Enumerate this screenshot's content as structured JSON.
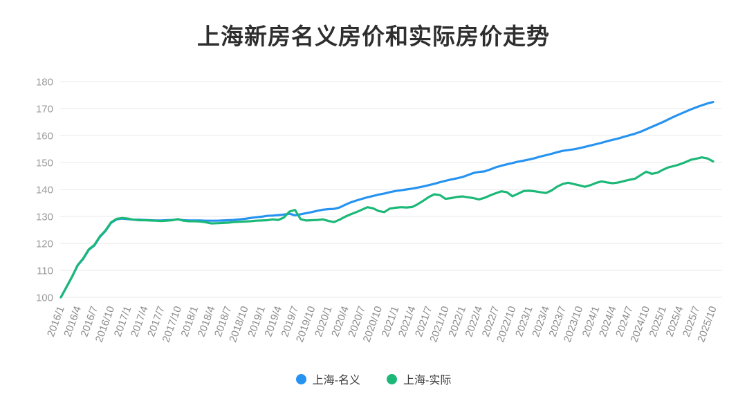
{
  "title": "上海新房名义房价和实际房价走势",
  "chart_data": {
    "type": "line",
    "title": "上海新房名义房价和实际房价走势",
    "grid": "horizontal-only",
    "legend_position": "bottom",
    "ylim": [
      100,
      180
    ],
    "y_ticks": [
      100,
      110,
      120,
      130,
      140,
      150,
      160,
      170,
      180
    ],
    "tick_step": 3,
    "x_tick_labels": [
      "2016/1",
      "2016/4",
      "2016/7",
      "2016/10",
      "2017/1",
      "2017/4",
      "2017/7",
      "2017/10",
      "2018/1",
      "2018/4",
      "2018/7",
      "2018/10",
      "2019/1",
      "2019/4",
      "2019/7",
      "2019/10",
      "2020/1",
      "2020/4",
      "2020/7",
      "2020/10",
      "2021/1",
      "2021/4",
      "2021/7",
      "2021/10",
      "2022/1",
      "2022/4",
      "2022/7",
      "2022/10",
      "2023/1",
      "2023/4",
      "2023/7",
      "2023/10",
      "2024/1",
      "2024/4",
      "2024/7",
      "2024/10",
      "2025/1",
      "2025/4",
      "2025/7",
      "2025/10"
    ],
    "x_start": "2016/1",
    "x_end": "2025/10",
    "x_frequency": "monthly",
    "series": [
      {
        "name": "上海-名义",
        "color": "#2693f1",
        "values": [
          100.0,
          103.8,
          107.6,
          111.8,
          114.2,
          117.6,
          119.2,
          122.4,
          124.6,
          127.6,
          128.9,
          129.2,
          129.0,
          128.8,
          128.8,
          128.7,
          128.6,
          128.5,
          128.5,
          128.6,
          128.7,
          128.9,
          128.6,
          128.5,
          128.5,
          128.5,
          128.4,
          128.4,
          128.4,
          128.5,
          128.6,
          128.7,
          128.9,
          129.1,
          129.4,
          129.7,
          129.9,
          130.2,
          130.3,
          130.5,
          130.7,
          131.0,
          130.4,
          130.8,
          131.2,
          131.6,
          132.1,
          132.5,
          132.7,
          132.8,
          133.3,
          134.3,
          135.2,
          135.9,
          136.5,
          137.1,
          137.6,
          138.1,
          138.5,
          139.0,
          139.4,
          139.7,
          140.0,
          140.3,
          140.7,
          141.1,
          141.6,
          142.1,
          142.7,
          143.2,
          143.7,
          144.1,
          144.6,
          145.3,
          146.1,
          146.5,
          146.7,
          147.4,
          148.2,
          148.8,
          149.3,
          149.8,
          150.3,
          150.7,
          151.1,
          151.6,
          152.2,
          152.7,
          153.2,
          153.8,
          154.3,
          154.6,
          154.9,
          155.3,
          155.8,
          156.3,
          156.8,
          157.3,
          157.9,
          158.4,
          158.9,
          159.5,
          160.1,
          160.7,
          161.4,
          162.3,
          163.2,
          164.1,
          165.0,
          166.0,
          167.0,
          167.9,
          168.8,
          169.7,
          170.5,
          171.2,
          171.9,
          172.4
        ]
      },
      {
        "name": "上海-实际",
        "color": "#1cb877",
        "values": [
          100.0,
          103.8,
          107.6,
          111.9,
          114.4,
          117.8,
          119.4,
          122.6,
          124.8,
          127.8,
          129.1,
          129.4,
          129.2,
          128.8,
          128.6,
          128.6,
          128.5,
          128.4,
          128.3,
          128.4,
          128.6,
          129.0,
          128.4,
          128.2,
          128.2,
          128.1,
          127.8,
          127.4,
          127.5,
          127.6,
          127.7,
          127.9,
          128.0,
          128.1,
          128.2,
          128.4,
          128.5,
          128.6,
          128.9,
          128.7,
          129.6,
          131.8,
          132.4,
          129.0,
          128.5,
          128.6,
          128.7,
          128.9,
          128.3,
          127.9,
          128.8,
          129.9,
          130.8,
          131.6,
          132.5,
          133.4,
          133.0,
          132.0,
          131.6,
          132.9,
          133.2,
          133.4,
          133.3,
          133.5,
          134.5,
          135.8,
          137.2,
          138.2,
          137.9,
          136.5,
          136.8,
          137.2,
          137.4,
          137.1,
          136.8,
          136.3,
          136.9,
          137.8,
          138.6,
          139.3,
          139.0,
          137.5,
          138.4,
          139.4,
          139.5,
          139.3,
          139.0,
          138.7,
          139.6,
          141.0,
          142.0,
          142.5,
          142.0,
          141.5,
          141.0,
          141.6,
          142.4,
          143.0,
          142.6,
          142.3,
          142.6,
          143.1,
          143.6,
          144.0,
          145.3,
          146.6,
          145.8,
          146.2,
          147.3,
          148.2,
          148.7,
          149.3,
          150.1,
          151.0,
          151.4,
          151.9,
          151.5,
          150.4
        ]
      }
    ]
  },
  "colors": {
    "nominal_line": "#2693f1",
    "real_line": "#1cb877",
    "gridline": "#e8e8e8",
    "axis_label": "#9a9a9a",
    "title_text": "#2e2e2e"
  }
}
